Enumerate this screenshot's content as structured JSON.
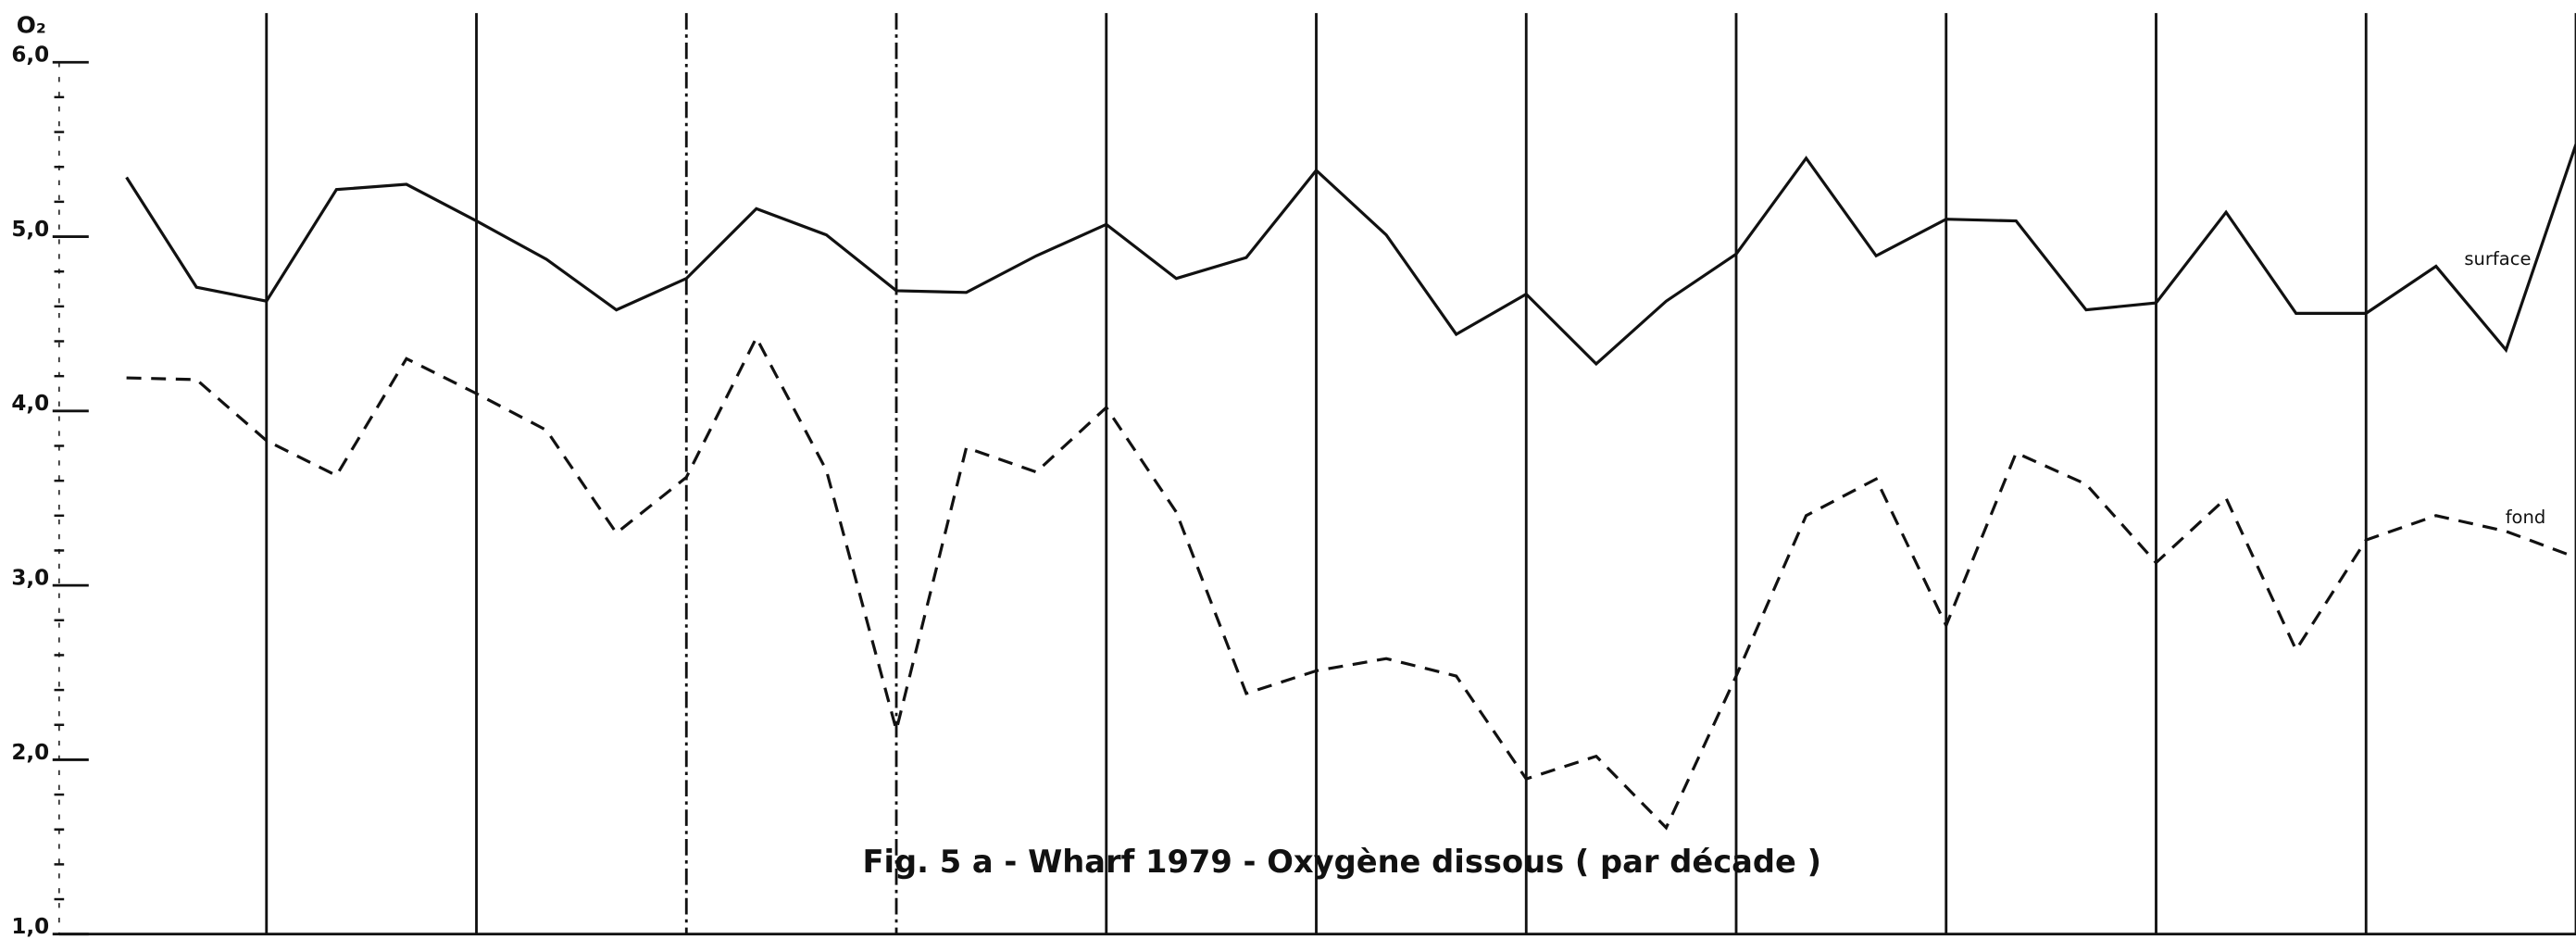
{
  "chart_data": {
    "type": "line",
    "title": "Fig. 5 a - Wharf 1979 - Oxygène dissous ( par décade )",
    "y_label": "O₂",
    "categories": [
      null,
      null,
      null,
      null,
      null,
      null,
      null,
      null,
      null,
      null,
      null,
      null,
      null,
      null,
      null,
      null,
      null,
      null,
      null,
      null,
      null,
      null,
      null,
      null,
      null,
      null,
      null,
      null,
      null,
      null,
      null,
      null,
      null,
      null,
      null,
      null
    ],
    "series": [
      {
        "name": "surface",
        "color": "#111111",
        "dash": false,
        "values": [
          5.34,
          4.71,
          4.63,
          5.27,
          5.3,
          5.09,
          4.87,
          4.58,
          4.76,
          5.16,
          5.01,
          4.69,
          4.68,
          4.89,
          5.07,
          4.76,
          4.88,
          5.38,
          5.01,
          4.44,
          4.67,
          4.27,
          4.63,
          4.9,
          5.45,
          4.89,
          5.1,
          5.09,
          4.58,
          4.62,
          5.14,
          4.56,
          4.56,
          4.83,
          4.35,
          5.53
        ]
      },
      {
        "name": "fond",
        "color": "#111111",
        "dash": true,
        "values": [
          4.19,
          4.18,
          3.83,
          3.63,
          4.3,
          4.1,
          3.89,
          3.3,
          3.62,
          4.42,
          3.66,
          2.17,
          3.79,
          3.65,
          4.02,
          3.42,
          2.38,
          2.51,
          2.58,
          2.48,
          1.89,
          2.02,
          1.61,
          2.48,
          3.4,
          3.61,
          2.77,
          3.76,
          3.58,
          3.13,
          3.5,
          2.63,
          3.26,
          3.4,
          3.31,
          3.16
        ]
      }
    ],
    "ylim": [
      1,
      6
    ],
    "yticks": [
      {
        "value": 1,
        "label": "1,0"
      },
      {
        "value": 2,
        "label": "2,0"
      },
      {
        "value": 3,
        "label": "3,0"
      },
      {
        "value": 4,
        "label": "4,0"
      },
      {
        "value": 5,
        "label": "5,0"
      },
      {
        "value": 6,
        "label": "6,0"
      }
    ],
    "yminorticks": [
      1.2,
      1.4,
      1.6,
      1.8,
      2.2,
      2.4,
      2.6,
      2.8,
      3.2,
      3.4,
      3.6,
      3.8,
      4.2,
      4.4,
      4.6,
      4.8,
      5.2,
      5.4,
      5.6,
      5.8
    ]
  }
}
